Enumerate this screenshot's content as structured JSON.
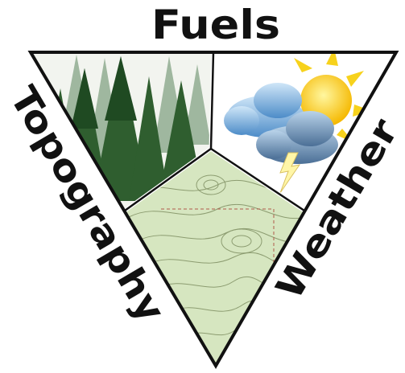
{
  "labels": {
    "top": "Fuels",
    "left": "Topography",
    "right": "Weather"
  }
}
